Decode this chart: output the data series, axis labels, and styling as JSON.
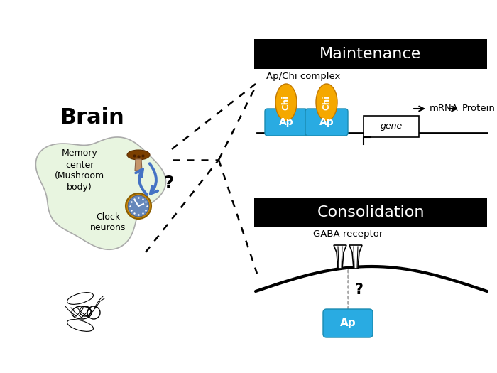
{
  "bg_color": "#ffffff",
  "maintenance_title": "Maintenance",
  "consolidation_title": "Consolidation",
  "ap_chi_label": "Ap/Chi complex",
  "gaba_label": "GABA receptor",
  "mrna_label": "mRNA",
  "protein_label": "Protein",
  "gene_label": "gene",
  "brain_label": "Brain",
  "memory_label": "Memory\ncenter\n(Mushroom\nbody)",
  "clock_label": "Clock\nneurons",
  "question_mark": "?",
  "chi_color": "#F5A800",
  "ap_color": "#29ABE2",
  "brain_fill": "#e8f5e0",
  "brain_stroke": "#aaaaaa",
  "arrow_blue": "#4472C4"
}
